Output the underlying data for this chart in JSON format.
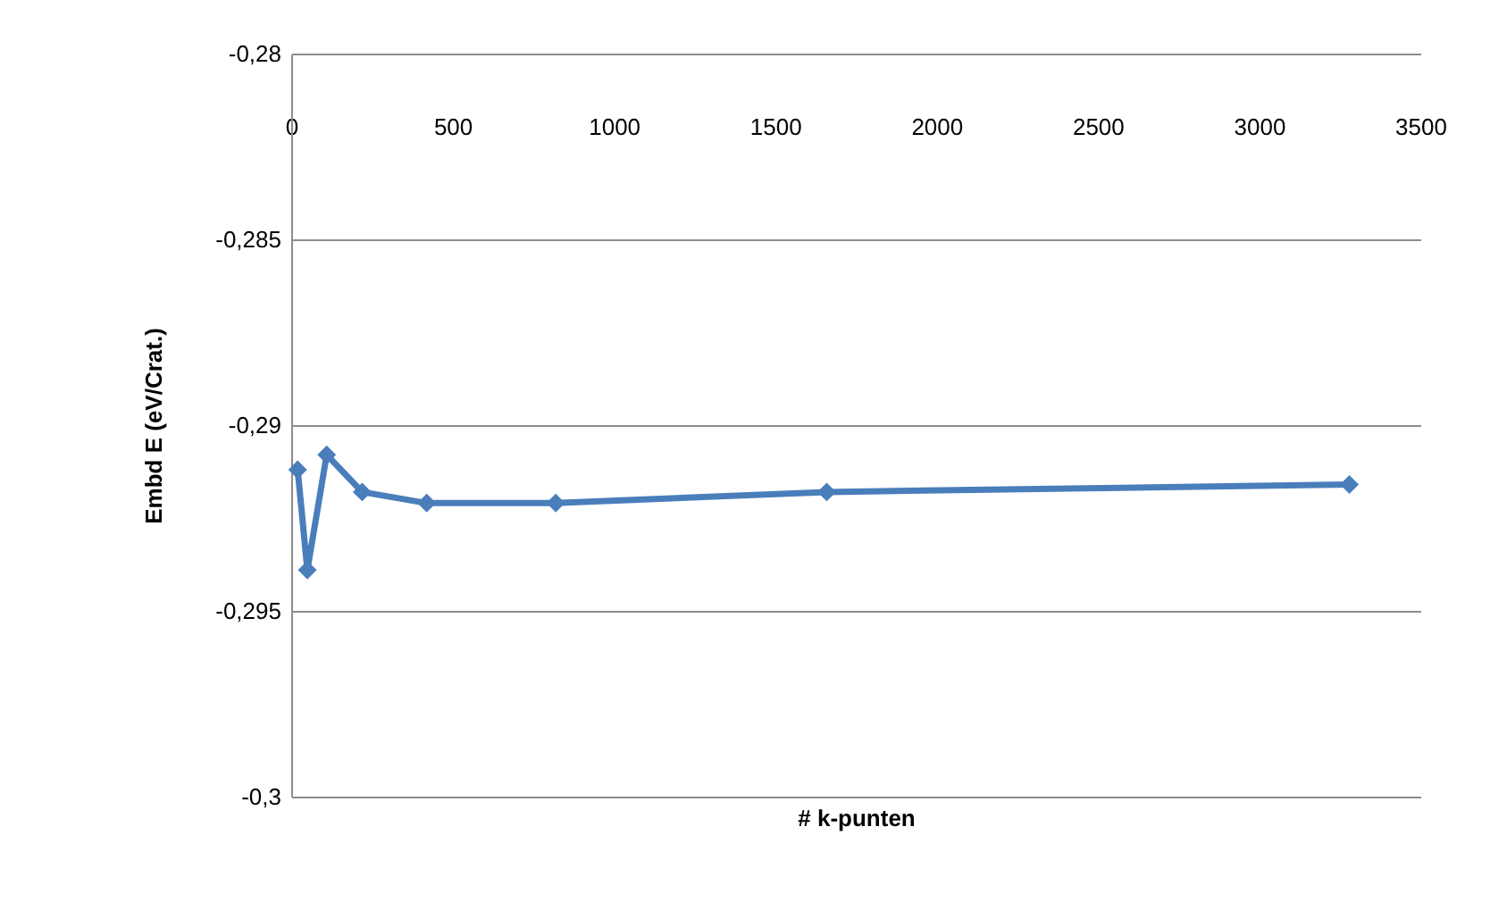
{
  "chart_data": {
    "type": "line",
    "xlabel": "# k-punten",
    "ylabel": "Embd E (eV/Crat.)",
    "x": [
      20,
      50,
      110,
      220,
      420,
      820,
      1660,
      3280
    ],
    "series": [
      {
        "color": "#4a7ebb",
        "values": [
          -0.2912,
          -0.2939,
          -0.2908,
          -0.2918,
          -0.2921,
          -0.2921,
          -0.2918,
          -0.2916
        ]
      }
    ],
    "xlim": [
      0,
      3500
    ],
    "xticks": [
      0,
      500,
      1000,
      1500,
      2000,
      2500,
      3000,
      3500
    ],
    "ylim": [
      -0.3,
      -0.28
    ],
    "yticks": [
      {
        "value": -0.3,
        "label": "-0,3"
      },
      {
        "value": -0.295,
        "label": "-0,295"
      },
      {
        "value": -0.29,
        "label": "-0,29"
      },
      {
        "value": -0.285,
        "label": "-0,285"
      },
      {
        "value": -0.28,
        "label": "-0,28"
      }
    ],
    "grid": "y",
    "marker": "diamond",
    "line_style": "solid"
  }
}
